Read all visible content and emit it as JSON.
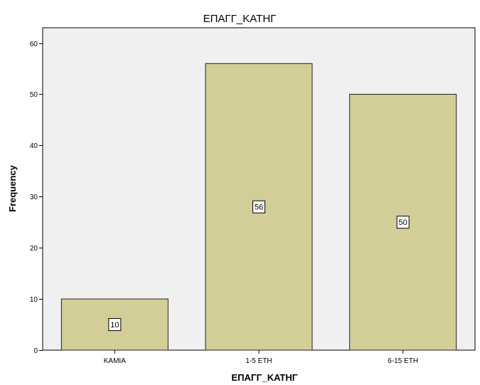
{
  "chart_data": {
    "type": "bar",
    "title": "ΕΠΑΓΓ_ΚΑΤΗΓ",
    "xlabel": "ΕΠΑΓΓ_ΚΑΤΗΓ",
    "ylabel": "Frequency",
    "categories": [
      "ΚΑΜΙΑ",
      "1-5 ΕΤΗ",
      "6-15 ΕΤΗ"
    ],
    "values": [
      10,
      56,
      50
    ],
    "data_labels": [
      "10",
      "56",
      "50"
    ],
    "ylim": [
      0,
      63
    ],
    "yticks": [
      0,
      10,
      20,
      30,
      40,
      50,
      60
    ],
    "ytick_labels": [
      "0",
      "10",
      "20",
      "30",
      "40",
      "50",
      "60"
    ],
    "grid": false,
    "legend": "none",
    "colors": {
      "plot_background": "#f0f0f0",
      "bar_fill": "#d3ce98",
      "bar_stroke": "#222222"
    }
  }
}
